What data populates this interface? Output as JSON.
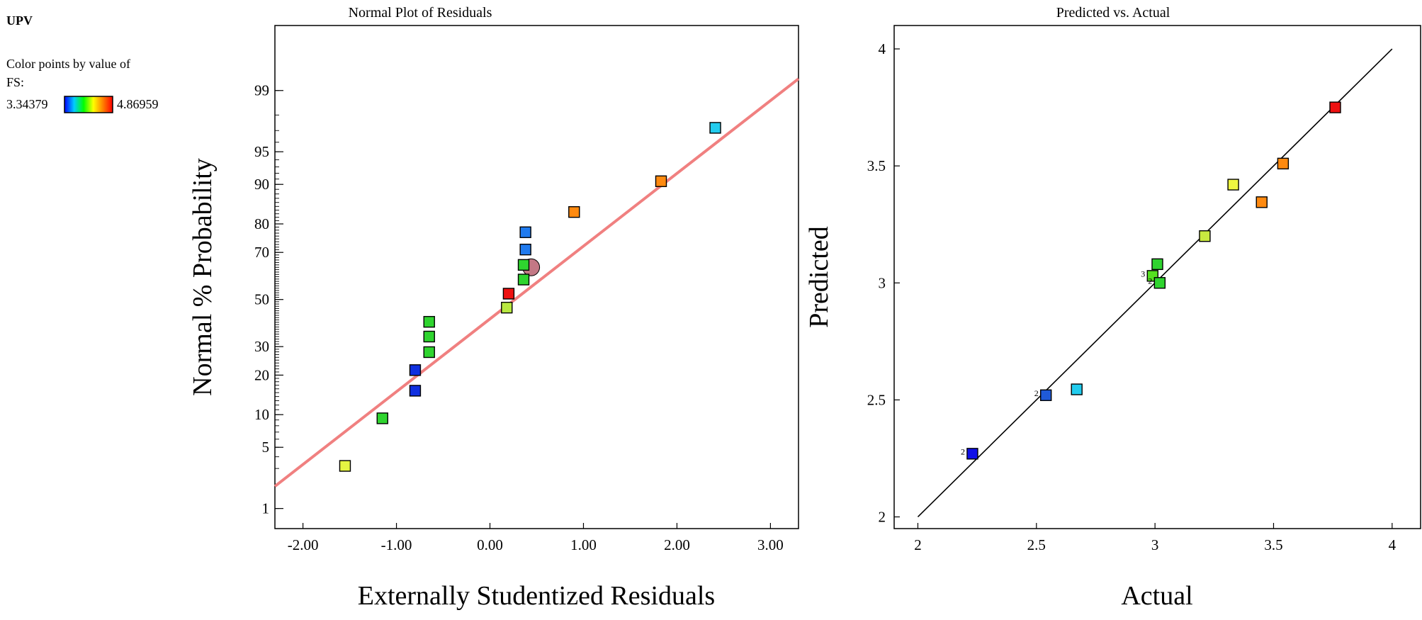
{
  "legend": {
    "response_label": "UPV",
    "color_by_text": "Color points by value of",
    "factor_text": "FS:",
    "min_label": "3.34379",
    "max_label": "4.86959",
    "min_color": "#0000ff",
    "max_color": "#ff0000",
    "gradient_colors": [
      "#0000ff",
      "#00ccff",
      "#00ff00",
      "#ffff00",
      "#ff7f00",
      "#ff0000"
    ]
  },
  "chart_data": [
    {
      "type": "scatter",
      "title": "Normal Plot of Residuals",
      "xlabel": "Externally Studentized Residuals",
      "ylabel": "Normal % Probability",
      "xlim": [
        -2.3,
        3.3
      ],
      "y_scale": "normal-probability",
      "ylim_z": [
        -2.55,
        3.05
      ],
      "xticks": [
        -2,
        -1,
        0,
        1,
        2,
        3
      ],
      "xtick_labels": [
        "-2.00",
        "-1.00",
        "0.00",
        "1.00",
        "2.00",
        "3.00"
      ],
      "yticks": [
        1,
        5,
        10,
        20,
        30,
        50,
        70,
        80,
        90,
        95,
        99
      ],
      "ytick_labels": [
        "1",
        "5",
        "10",
        "20",
        "30",
        "50",
        "70",
        "80",
        "90",
        "95",
        "99"
      ],
      "reference_line": {
        "slope_z_per_unit": 0.81,
        "intercept_z": -0.216,
        "color": "#f08080"
      },
      "points": [
        {
          "x": -1.55,
          "p": 3.2,
          "color": "#e5f542"
        },
        {
          "x": -1.15,
          "p": 9.3,
          "color": "#2fd42f"
        },
        {
          "x": -0.8,
          "p": 15.5,
          "color": "#1030e0"
        },
        {
          "x": -0.8,
          "p": 21.6,
          "color": "#1030e0"
        },
        {
          "x": -0.65,
          "p": 27.9,
          "color": "#2fd42f"
        },
        {
          "x": -0.65,
          "p": 34.0,
          "color": "#2fd42f"
        },
        {
          "x": -0.65,
          "p": 40.2,
          "color": "#2fd42f"
        },
        {
          "x": 0.18,
          "p": 46.4,
          "color": "#b8e840"
        },
        {
          "x": 0.2,
          "p": 52.6,
          "color": "#ee1111"
        },
        {
          "x": 0.36,
          "p": 58.8,
          "color": "#2fd42f"
        },
        {
          "x": 0.36,
          "p": 65.0,
          "color": "#2fd42f"
        },
        {
          "x": 0.38,
          "p": 71.1,
          "color": "#1f7aee"
        },
        {
          "x": 0.38,
          "p": 77.3,
          "color": "#1f7aee"
        },
        {
          "x": 0.9,
          "p": 83.5,
          "color": "#ff8a10"
        },
        {
          "x": 1.83,
          "p": 90.6,
          "color": "#ff8a10"
        },
        {
          "x": 2.41,
          "p": 97.2,
          "color": "#22ccee"
        }
      ],
      "highlight_point": {
        "x": 0.44,
        "p": 64.0,
        "color": "#b86070"
      }
    },
    {
      "type": "scatter",
      "title": "Predicted vs. Actual",
      "xlabel": "Actual",
      "ylabel": "Predicted",
      "xlim": [
        1.9,
        4.12
      ],
      "ylim": [
        1.95,
        4.1
      ],
      "xticks": [
        2,
        2.5,
        3,
        3.5,
        4
      ],
      "xtick_labels": [
        "2",
        "2.5",
        "3",
        "3.5",
        "4"
      ],
      "yticks": [
        2,
        2.5,
        3,
        3.5,
        4
      ],
      "ytick_labels": [
        "2",
        "2.5",
        "3",
        "3.5",
        "4"
      ],
      "reference_line": {
        "x": [
          2,
          4
        ],
        "y": [
          2,
          4
        ],
        "color": "#000000"
      },
      "points": [
        {
          "x": 2.23,
          "y": 2.27,
          "color": "#1010e8",
          "count_label": "2"
        },
        {
          "x": 2.54,
          "y": 2.52,
          "color": "#1f5ad8",
          "count_label": "2"
        },
        {
          "x": 2.67,
          "y": 2.545,
          "color": "#22ccee"
        },
        {
          "x": 2.99,
          "y": 3.03,
          "color": "#55e020",
          "count_label": "3"
        },
        {
          "x": 3.01,
          "y": 3.08,
          "color": "#2fd42f"
        },
        {
          "x": 3.02,
          "y": 3.0,
          "color": "#2fd42f",
          "count_label": "2"
        },
        {
          "x": 3.21,
          "y": 3.2,
          "color": "#c8e840"
        },
        {
          "x": 3.33,
          "y": 3.42,
          "color": "#eef540"
        },
        {
          "x": 3.45,
          "y": 3.345,
          "color": "#ff8a10"
        },
        {
          "x": 3.54,
          "y": 3.51,
          "color": "#ff8a10"
        },
        {
          "x": 3.76,
          "y": 3.75,
          "color": "#ee1111"
        }
      ]
    }
  ]
}
